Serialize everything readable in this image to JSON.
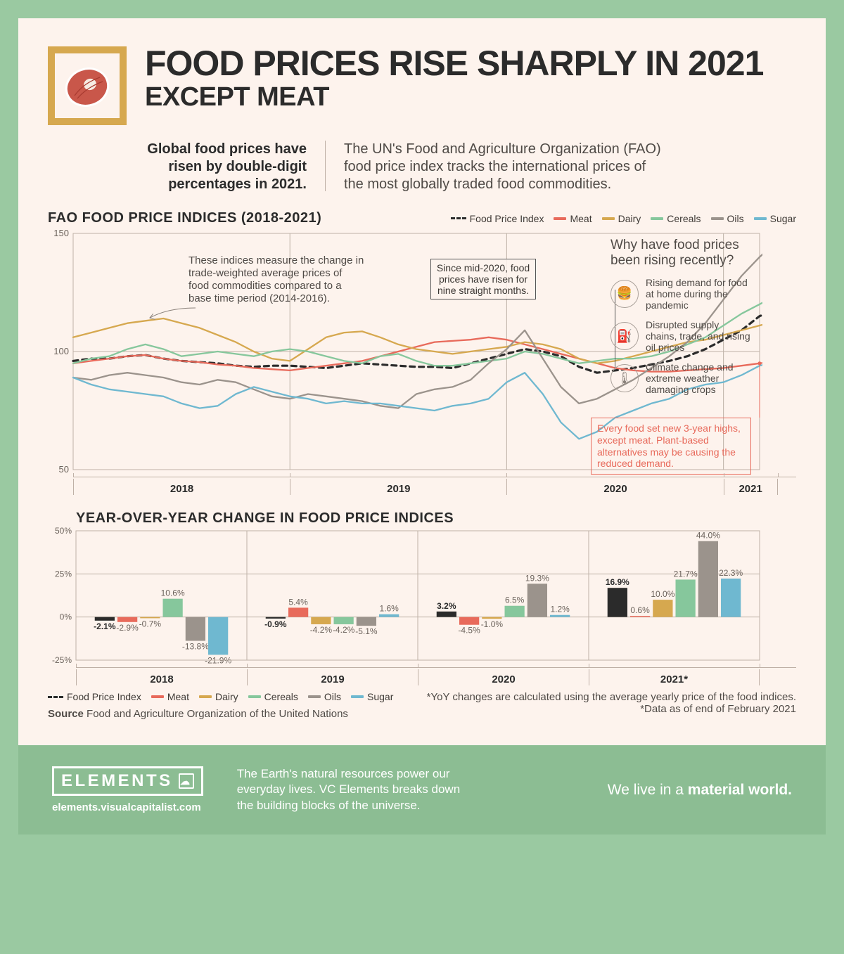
{
  "headline": {
    "line1": "FOOD PRICES RISE SHARPLY IN 2021",
    "line2": "EXCEPT MEAT"
  },
  "intro": {
    "left": "Global food prices have risen by double-digit percentages in 2021.",
    "right": "The UN's Food and Agriculture Organization (FAO) food price index tracks the international prices of the most globally traded food commodities."
  },
  "chart1": {
    "title": "FAO FOOD PRICE INDICES (2018-2021)",
    "legend": [
      {
        "label": "Food Price Index",
        "color": "#2b2b2b",
        "dashed": true
      },
      {
        "label": "Meat",
        "color": "#e86a5b"
      },
      {
        "label": "Dairy",
        "color": "#d6a84f"
      },
      {
        "label": "Cereals",
        "color": "#86c79c"
      },
      {
        "label": "Oils",
        "color": "#9b938c"
      },
      {
        "label": "Sugar",
        "color": "#6fb8d0"
      }
    ],
    "ylim": [
      50,
      150
    ],
    "yticks": [
      50,
      100,
      150
    ],
    "year_labels": [
      "2018",
      "2019",
      "2020",
      "2021"
    ],
    "x_count": 39,
    "year_boundaries": [
      0,
      12,
      24,
      36,
      39
    ],
    "background_color": "#fdf3ed",
    "grid_color": "#beb2a7",
    "series": {
      "fpi": {
        "color": "#2b2b2b",
        "dashed": true,
        "values": [
          96,
          97,
          97,
          98,
          98.5,
          97,
          96,
          95.5,
          95,
          94,
          93.5,
          94,
          94,
          93.5,
          93,
          94,
          95,
          94.5,
          94,
          93.5,
          93.5,
          93,
          95,
          97,
          99,
          101,
          100,
          98,
          93.5,
          91,
          92,
          93,
          94.5,
          96,
          98,
          101,
          105,
          109,
          115,
          117.5
        ]
      },
      "meat": {
        "color": "#e86a5b",
        "values": [
          95,
          96,
          97,
          98,
          98.5,
          97,
          96,
          95.5,
          94.5,
          94,
          93,
          92.5,
          92,
          93,
          94,
          95,
          96,
          98,
          100,
          102,
          104,
          104.5,
          105,
          106,
          105,
          103,
          101,
          99,
          97,
          95,
          93,
          92,
          91.5,
          91.5,
          92,
          92.5,
          93,
          94,
          95,
          96
        ]
      },
      "dairy": {
        "color": "#d6a84f",
        "values": [
          106,
          108,
          110,
          112,
          113,
          114,
          112,
          110,
          107,
          104,
          100,
          97,
          96,
          101,
          106,
          108,
          108.5,
          106,
          103,
          101,
          100,
          99,
          100,
          101,
          102,
          104,
          103,
          101,
          97,
          95,
          96,
          98,
          100,
          102,
          104,
          105,
          107,
          109,
          111,
          113
        ]
      },
      "cereals": {
        "color": "#86c79c",
        "values": [
          95,
          97,
          98,
          101,
          103,
          101,
          98,
          99,
          100,
          99,
          98,
          100,
          101,
          100,
          98,
          96,
          95,
          98,
          99,
          96,
          94,
          94,
          95,
          96,
          97,
          100,
          99,
          97,
          95,
          96,
          97,
          97,
          98,
          100,
          103,
          106,
          111,
          116,
          120,
          124
        ]
      },
      "oils": {
        "color": "#9b938c",
        "values": [
          89,
          88,
          90,
          91,
          90,
          89,
          87,
          86,
          88,
          87,
          84,
          81,
          80,
          82,
          81,
          80,
          79,
          77,
          76,
          82,
          84,
          85,
          88,
          95,
          101,
          109,
          97,
          85,
          78,
          80,
          84,
          88,
          93,
          98,
          104,
          112,
          122,
          132,
          140,
          147
        ]
      },
      "sugar": {
        "color": "#6fb8d0",
        "values": [
          89,
          86,
          84,
          83,
          82,
          81,
          78,
          76,
          77,
          82,
          85,
          83,
          81,
          80,
          78,
          79,
          78,
          78,
          77,
          76,
          75,
          77,
          78,
          80,
          87,
          91,
          82,
          70,
          63,
          66,
          72,
          75,
          78,
          80,
          84,
          86,
          87,
          90,
          94,
          96
        ]
      }
    },
    "annotations": {
      "measure_note": "These indices measure the change in trade-weighted average prices of food commodities compared to a base time period (2014-2016).",
      "since_mid2020": "Since mid-2020, food prices have risen for nine straight months.",
      "meat_note": "Every food set new 3-year highs, except meat. Plant-based alternatives may be causing the reduced demand."
    },
    "reasons": {
      "head": "Why have food prices been rising recently?",
      "items": [
        {
          "icon": "🍔",
          "text": "Rising demand for food at home during the pandemic"
        },
        {
          "icon": "⛽",
          "text": "Disrupted supply chains, trade, and rising oil prices"
        },
        {
          "icon": "🌡",
          "text": "Climate change and extreme weather damaging crops"
        }
      ]
    }
  },
  "chart2": {
    "title": "YEAR-OVER-YEAR CHANGE IN FOOD PRICE INDICES",
    "ylim": [
      -25,
      50
    ],
    "yticks": [
      -25,
      0,
      25,
      50
    ],
    "year_labels": [
      "2018",
      "2019",
      "2020",
      "2021*"
    ],
    "legend_same": [
      "Food Price Index",
      "Meat",
      "Dairy",
      "Cereals",
      "Oils",
      "Sugar"
    ],
    "colors": [
      "#2b2b2b",
      "#e86a5b",
      "#d6a84f",
      "#86c79c",
      "#9b938c",
      "#6fb8d0"
    ],
    "years": [
      {
        "vals": [
          -2.1,
          -2.9,
          -0.7,
          10.6,
          -13.8,
          -21.9
        ],
        "labels": [
          "-2.1%",
          "-2.9%",
          "-0.7%",
          "10.6%",
          "-13.8%",
          "-21.9%"
        ]
      },
      {
        "vals": [
          -0.9,
          5.4,
          -4.2,
          -4.2,
          -5.1,
          1.6
        ],
        "labels": [
          "-0.9%",
          "5.4%",
          "-4.2%",
          "-4.2%",
          "-5.1%",
          "1.6%"
        ]
      },
      {
        "vals": [
          3.2,
          -4.5,
          -1.0,
          6.5,
          19.3,
          1.2
        ],
        "labels": [
          "3.2%",
          "-4.5%",
          "-1.0%",
          "6.5%",
          "19.3%",
          "1.2%"
        ]
      },
      {
        "vals": [
          16.9,
          0.6,
          10.0,
          21.7,
          44.0,
          22.3
        ],
        "labels": [
          "16.9%",
          "0.6%",
          "10.0%",
          "21.7%",
          "44.0%",
          "22.3%"
        ]
      }
    ],
    "footnote1": "*YoY changes are calculated using the average yearly price of the food indices.",
    "footnote2": "*Data as of end of February 2021",
    "source_label": "Source",
    "source_text": "Food and Agriculture Organization of the United Nations"
  },
  "footer": {
    "brand": "ELEMENTS",
    "url": "elements.visualcapitalist.com",
    "middle": "The Earth's natural resources power our everyday lives. VC Elements breaks down the building blocks of the universe.",
    "tag_prefix": "We live in a ",
    "tag_bold": "material world."
  }
}
